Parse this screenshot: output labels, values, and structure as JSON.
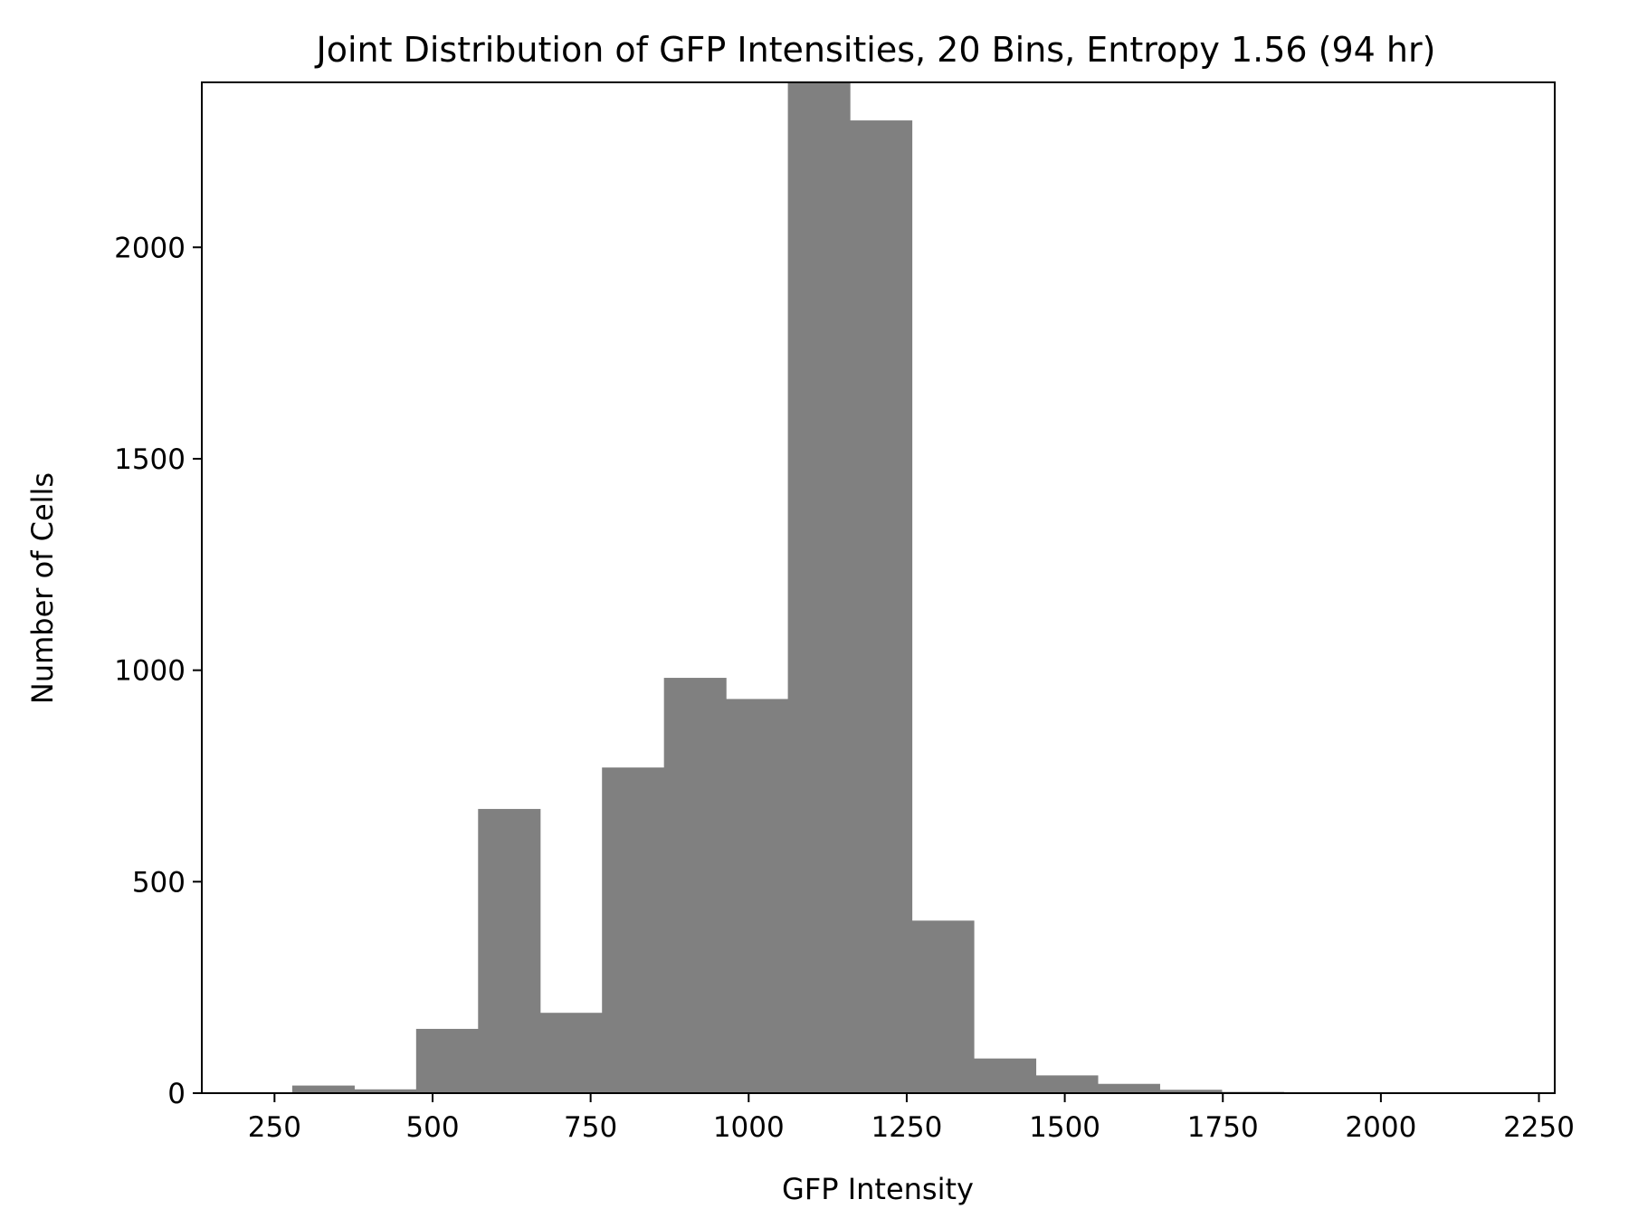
{
  "chart_data": {
    "type": "bar",
    "title": "Joint Distribution of GFP Intensities, 20 Bins, Entropy 1.56 (94 hr)",
    "xlabel": "GFP Intensity",
    "ylabel": "Number of Cells",
    "xlim": [
      135,
      2275
    ],
    "ylim": [
      0,
      2390
    ],
    "x_ticks": [
      250,
      500,
      750,
      1000,
      1250,
      1500,
      1750,
      2000,
      2250
    ],
    "y_ticks": [
      0,
      500,
      1000,
      1500,
      2000
    ],
    "bin_edges": [
      180,
      278,
      376,
      474,
      572,
      670,
      768,
      866,
      964,
      1062,
      1160,
      1258,
      1356,
      1454,
      1552,
      1650,
      1748,
      1846,
      1944,
      2042,
      2140
    ],
    "values": [
      2,
      18,
      9,
      152,
      672,
      190,
      770,
      982,
      932,
      2400,
      2300,
      408,
      82,
      42,
      22,
      8,
      3,
      2,
      1,
      1
    ],
    "bar_color": "#808080",
    "grid": false,
    "legend": "none"
  }
}
